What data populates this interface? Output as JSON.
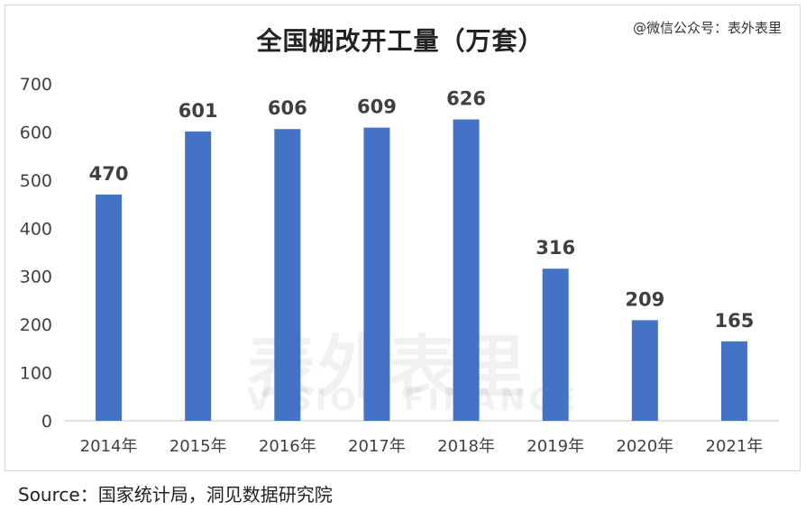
{
  "watermark": {
    "cn": "表外表里",
    "en": "VISION FINANCE"
  },
  "wechat": "@微信公众号：表外表里",
  "source": "Source：国家统计局，洞见数据研究院",
  "colors": {
    "bar": "#4472c4",
    "axis": "#d9d9d9",
    "text": "#404040"
  },
  "chart_data": {
    "type": "bar",
    "title": "全国棚改开工量（万套）",
    "categories": [
      "2014年",
      "2015年",
      "2016年",
      "2017年",
      "2018年",
      "2019年",
      "2020年",
      "2021年"
    ],
    "values": [
      470,
      601,
      606,
      609,
      626,
      316,
      209,
      165
    ],
    "yticks": [
      0,
      100,
      200,
      300,
      400,
      500,
      600,
      700
    ],
    "ylim": [
      0,
      700
    ],
    "xlabel": "",
    "ylabel": "",
    "grid": false,
    "data_labels": true
  }
}
